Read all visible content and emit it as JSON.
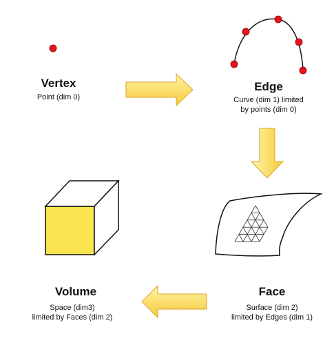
{
  "vertex": {
    "title": "Vertex",
    "desc": "Point (dim 0)"
  },
  "edge": {
    "title": "Edge",
    "desc_line1": "Curve (dim 1) limited",
    "desc_line2": "by points (dim 0)"
  },
  "face": {
    "title": "Face",
    "desc_line1": "Surface (dim 2)",
    "desc_line2": "limited by Edges (dim 1)"
  },
  "volume": {
    "title": "Volume",
    "desc_line1": "Space (dim3)",
    "desc_line2": "limited by Faces (dim 2)"
  },
  "colors": {
    "point_fill": "#e8131b",
    "point_stroke": "#8a0000",
    "arrow_fill_light": "#fff4a8",
    "arrow_fill_dark": "#f6c93a",
    "arrow_stroke": "#d9a62a",
    "cube_front": "#f8e44f",
    "outline": "#111111"
  }
}
